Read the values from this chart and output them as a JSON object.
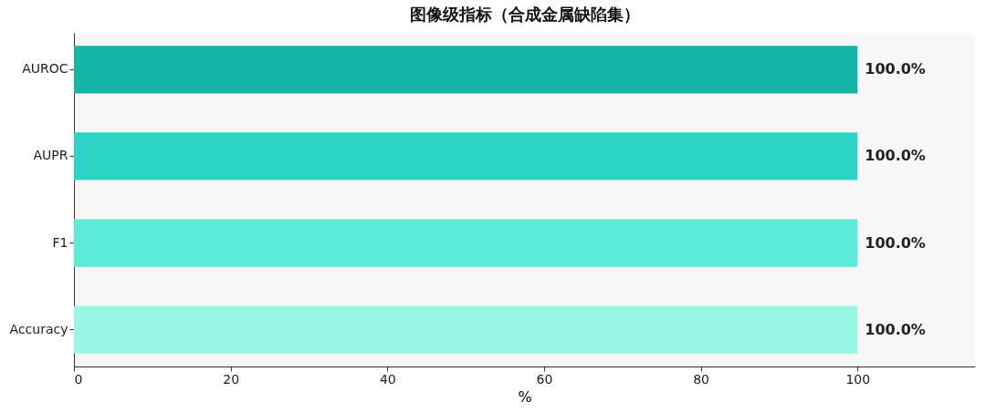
{
  "chart_data": {
    "type": "bar",
    "orientation": "horizontal",
    "title": "图像级指标（合成金属缺陷集）",
    "xlabel": "%",
    "categories": [
      "AUROC",
      "AUPR",
      "F1",
      "Accuracy"
    ],
    "values": [
      100,
      100,
      100,
      100
    ],
    "colors": [
      "#14b5a7",
      "#2dd4c5",
      "#5eead9",
      "#99f6e4"
    ],
    "value_labels": [
      "100.0%",
      "100.0%",
      "100.0%",
      "100.0%"
    ],
    "xlim": [
      0,
      115
    ],
    "xticks": [
      0,
      20,
      40,
      60,
      80,
      100
    ],
    "grid": false
  }
}
